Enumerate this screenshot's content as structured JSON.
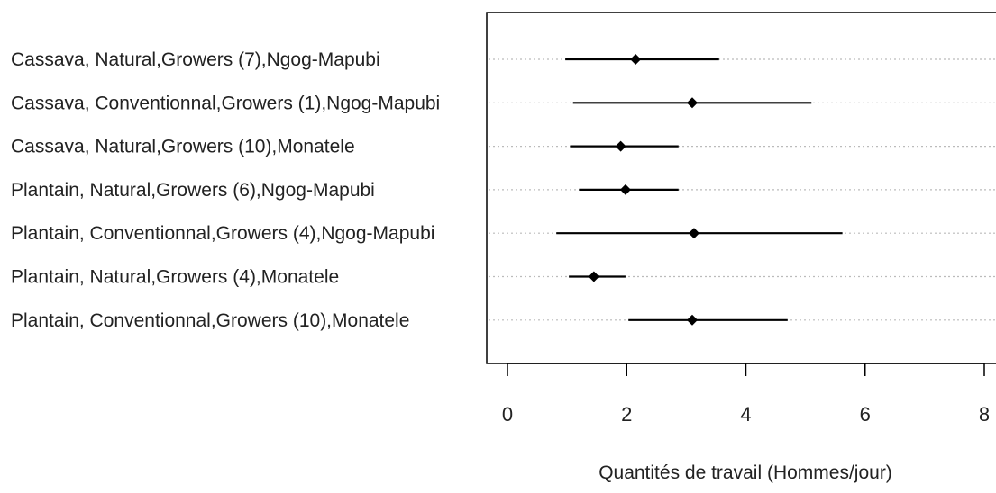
{
  "chart_data": {
    "type": "scatter",
    "xlabel": "Quantités de travail (Hommes/jour)",
    "xlim": [
      0,
      8
    ],
    "x_ticks": [
      "0",
      "2",
      "4",
      "6",
      "8"
    ],
    "grid": "horizontal dotted",
    "categories": [
      "Cassava, Natural,Growers (7),Ngog-Mapubi",
      "Cassava, Conventionnal,Growers  (1),Ngog-Mapubi",
      "Cassava, Natural,Growers (10),Monatele",
      "Plantain, Natural,Growers  (6),Ngog-Mapubi",
      "Plantain, Conventionnal,Growers (4),Ngog-Mapubi",
      "Plantain, Natural,Growers  (4),Monatele",
      "Plantain, Conventionnal,Growers (10),Monatele"
    ],
    "points": [
      {
        "mean": 2.15,
        "low": 0.97,
        "high": 3.55
      },
      {
        "mean": 3.1,
        "low": 1.1,
        "high": 5.1
      },
      {
        "mean": 1.9,
        "low": 1.05,
        "high": 2.87
      },
      {
        "mean": 1.98,
        "low": 1.2,
        "high": 2.87
      },
      {
        "mean": 3.13,
        "low": 0.82,
        "high": 5.62
      },
      {
        "mean": 1.45,
        "low": 1.03,
        "high": 1.98
      },
      {
        "mean": 3.1,
        "low": 2.03,
        "high": 4.7
      }
    ],
    "colors": {
      "marker": "#000000",
      "grid": "#bbbbbb",
      "frame": "#000000"
    }
  }
}
